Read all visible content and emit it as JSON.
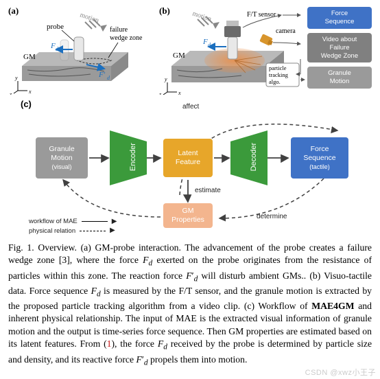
{
  "labels": {
    "a": "(a)",
    "b": "(b)",
    "c": "(c)"
  },
  "panelA": {
    "probe": "probe",
    "motion": "motion",
    "failure": "failure\nwedge zone",
    "gm": "GM",
    "fd": "F_d",
    "fdp": "F′_d",
    "slab_top": "#b9b9b9",
    "slab_side": "#9a9a9a",
    "slab_side2": "#8a8a8a",
    "probe_color": "#e8e8e8",
    "arrow_blue": "#1b6fbf"
  },
  "panelB": {
    "motion": "motion",
    "ft_sensor": "F/T sensor",
    "camera": "camera",
    "gm": "GM",
    "fd": "F_d",
    "particle_tracking": "particle\ntracking\nalgo.",
    "box1": {
      "text": "Force\nSequence",
      "bg": "#3f72c6"
    },
    "box2": {
      "text": "Video about\nFailure\nWedge Zone",
      "bg": "#808080"
    },
    "box3": {
      "text": "Granule\nMotion",
      "bg": "#9a9a9a"
    },
    "wedge_fill": "#e98f4a",
    "slab_top": "#b9b9b9",
    "slab_side": "#9a9a9a",
    "slab_side2": "#8a8a8a",
    "ft_color": "#6a6a6a",
    "cam_color": "#d8952c"
  },
  "panelC": {
    "affect": "affect",
    "estimate": "estimate",
    "determine": "determine",
    "granule_block": {
      "line1": "Granule",
      "line2": "Motion",
      "line3": "(visual)",
      "bg": "#9a9a9a",
      "fg": "#ffffff"
    },
    "encoder": {
      "text": "Encoder",
      "bg": "#3b9a3b"
    },
    "latent": {
      "line1": "Latent",
      "line2": "Feature",
      "bg": "#e7a62a",
      "fg": "#ffffff"
    },
    "decoder": {
      "text": "Decoder",
      "bg": "#3b9a3b"
    },
    "force_block": {
      "line1": "Force",
      "line2": "Sequence",
      "line3": "(tactile)",
      "bg": "#3f72c6",
      "fg": "#ffffff"
    },
    "gm_props": {
      "line1": "GM",
      "line2": "Properties",
      "bg": "#f3b58e",
      "fg": "#ffffff"
    },
    "legend_solid": "workflow of MAE",
    "legend_dash": "physical relation",
    "arrow_color": "#404040"
  },
  "caption": {
    "text": "Fig. 1.   Overview. (a) GM-probe interaction. The advancement of the probe creates a failure wedge zone [3], where the force F_d exerted on the probe originates from the resistance of particles within this zone. The reaction force F′_d will disturb ambient GMs.. (b) Visuo-tactile data. Force sequence F_d is measured by the F/T sensor, and the granule motion is extracted by the proposed particle tracking algorithm from a video clip. (c) Workflow of MAE4GM and inherent physical relationship. The input of MAE is the extracted visual information of granule motion and the output is time-series force sequence. Then GM properties are estimated based on its latent features. From (1), the force F_d received by the probe is determined by particle size and density, and its reactive force F′_d propels them into motion.",
    "ref_color": "#c81414",
    "bold_token": "MAE4GM"
  },
  "watermark": "CSDN @xwz小王子"
}
